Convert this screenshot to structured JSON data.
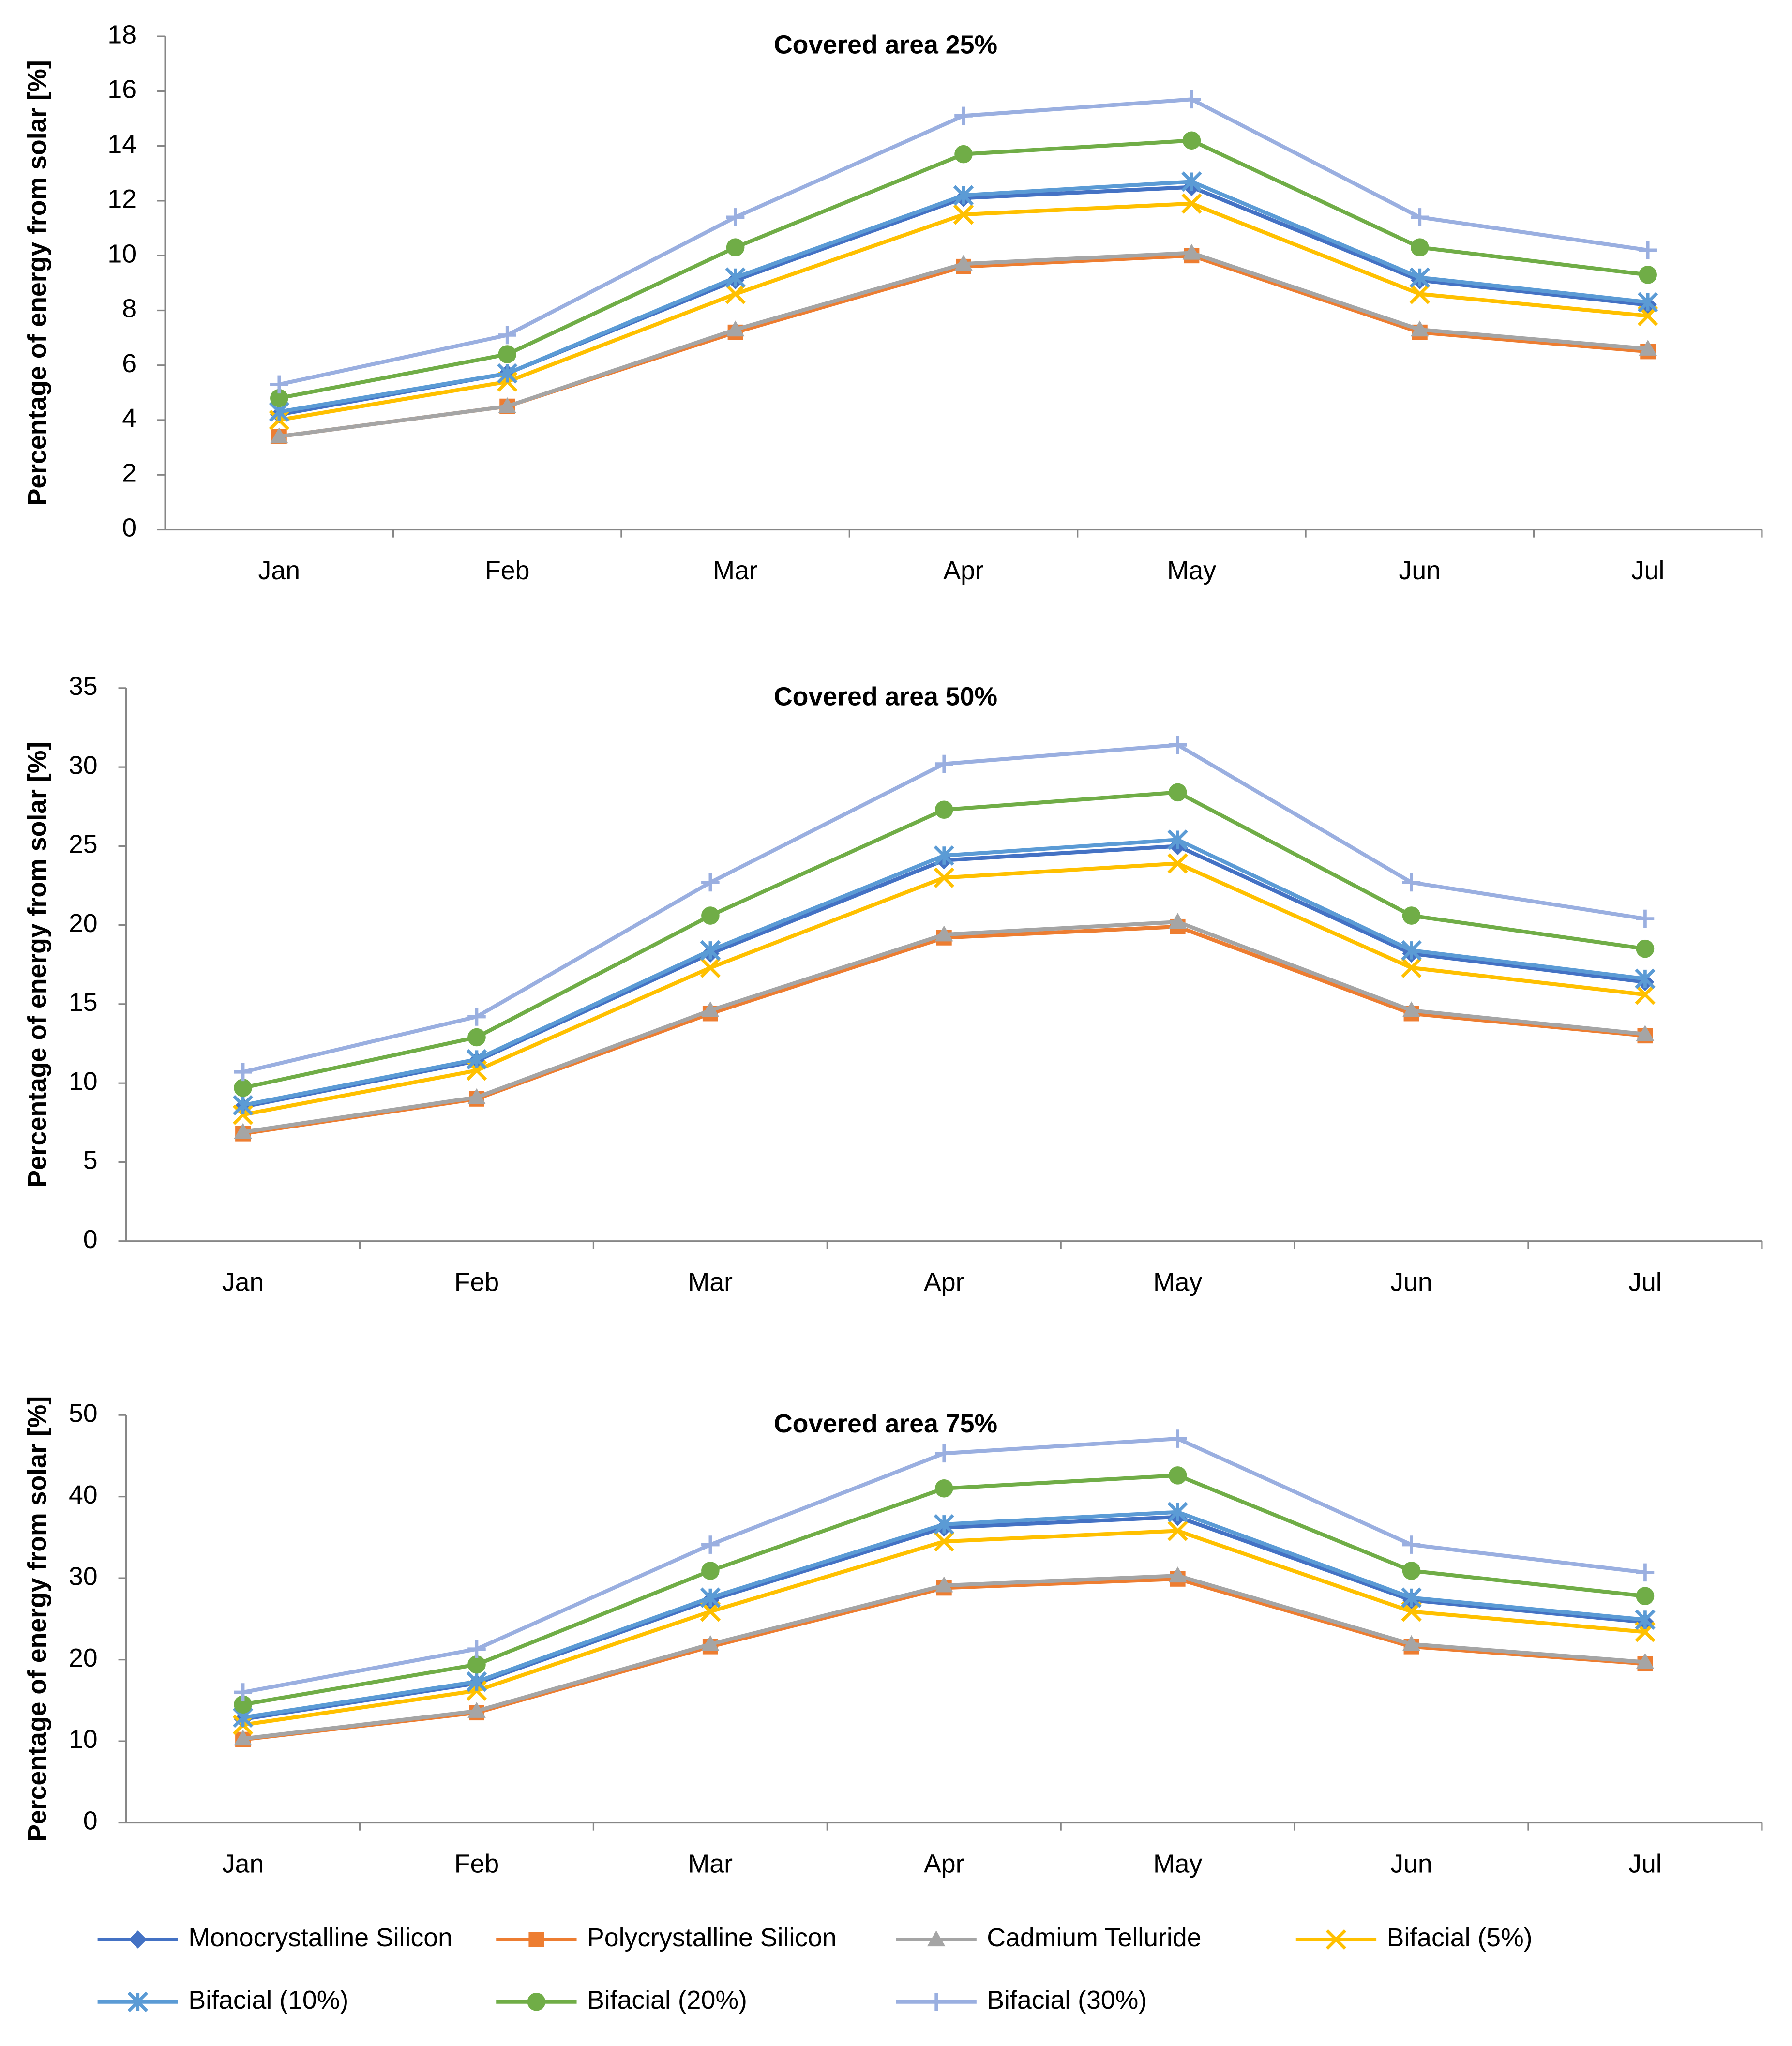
{
  "chart_data": [
    {
      "type": "line",
      "title": "Covered area 25%",
      "y_label": "Percentage of energy from solar [%]",
      "categories": [
        "Jan",
        "Feb",
        "Mar",
        "Apr",
        "May",
        "Jun",
        "Jul"
      ],
      "ylim": [
        0,
        18
      ],
      "yticks": [
        0,
        2,
        4,
        6,
        8,
        10,
        12,
        14,
        16,
        18
      ],
      "series": [
        {
          "values": [
            4.2,
            5.7,
            9.1,
            12.1,
            12.5,
            9.1,
            8.2
          ]
        },
        {
          "values": [
            3.4,
            4.5,
            7.2,
            9.6,
            10.0,
            7.2,
            6.5
          ]
        },
        {
          "values": [
            3.4,
            4.5,
            7.3,
            9.7,
            10.1,
            7.3,
            6.6
          ]
        },
        {
          "values": [
            4.0,
            5.4,
            8.6,
            11.5,
            11.9,
            8.6,
            7.8
          ]
        },
        {
          "values": [
            4.3,
            5.7,
            9.2,
            12.2,
            12.7,
            9.2,
            8.3
          ]
        },
        {
          "values": [
            4.8,
            6.4,
            10.3,
            13.7,
            14.2,
            10.3,
            9.3
          ]
        },
        {
          "values": [
            5.3,
            7.1,
            11.4,
            15.1,
            15.7,
            11.4,
            10.2
          ]
        }
      ]
    },
    {
      "type": "line",
      "title": "Covered area 50%",
      "y_label": "Percentage of energy from solar [%]",
      "categories": [
        "Jan",
        "Feb",
        "Mar",
        "Apr",
        "May",
        "Jun",
        "Jul"
      ],
      "ylim": [
        0,
        35
      ],
      "yticks": [
        0,
        5,
        10,
        15,
        20,
        25,
        30,
        35
      ],
      "series": [
        {
          "values": [
            8.5,
            11.4,
            18.2,
            24.1,
            25.0,
            18.2,
            16.4
          ]
        },
        {
          "values": [
            6.8,
            9.0,
            14.4,
            19.2,
            19.9,
            14.4,
            13.0
          ]
        },
        {
          "values": [
            6.9,
            9.1,
            14.6,
            19.4,
            20.2,
            14.6,
            13.1
          ]
        },
        {
          "values": [
            8.0,
            10.8,
            17.3,
            23.0,
            23.9,
            17.3,
            15.6
          ]
        },
        {
          "values": [
            8.6,
            11.5,
            18.4,
            24.4,
            25.4,
            18.4,
            16.6
          ]
        },
        {
          "values": [
            9.7,
            12.9,
            20.6,
            27.3,
            28.4,
            20.6,
            18.5
          ]
        },
        {
          "values": [
            10.7,
            14.2,
            22.7,
            30.2,
            31.4,
            22.7,
            20.4
          ]
        }
      ]
    },
    {
      "type": "line",
      "title": "Covered area 75%",
      "y_label": "Percentage of energy from solar [%]",
      "categories": [
        "Jan",
        "Feb",
        "Mar",
        "Apr",
        "May",
        "Jun",
        "Jul"
      ],
      "ylim": [
        0,
        50
      ],
      "yticks": [
        0,
        10,
        20,
        30,
        40,
        50
      ],
      "series": [
        {
          "values": [
            12.7,
            17.1,
            27.3,
            36.2,
            37.5,
            27.3,
            24.6
          ]
        },
        {
          "values": [
            10.2,
            13.5,
            21.6,
            28.8,
            29.9,
            21.6,
            19.5
          ]
        },
        {
          "values": [
            10.3,
            13.7,
            21.9,
            29.1,
            30.3,
            21.9,
            19.7
          ]
        },
        {
          "values": [
            12.0,
            16.2,
            25.9,
            34.5,
            35.8,
            25.9,
            23.4
          ]
        },
        {
          "values": [
            12.9,
            17.3,
            27.6,
            36.6,
            38.1,
            27.6,
            24.9
          ]
        },
        {
          "values": [
            14.5,
            19.4,
            30.9,
            41.0,
            42.6,
            30.9,
            27.8
          ]
        },
        {
          "values": [
            16.0,
            21.3,
            34.1,
            45.3,
            47.1,
            34.1,
            30.7
          ]
        }
      ]
    }
  ],
  "legend": {
    "position": "bottom",
    "entries": [
      {
        "name": "Monocrystalline Silicon",
        "color": "#4472c4",
        "marker": "diamond"
      },
      {
        "name": "Polycrystalline Silicon",
        "color": "#ed7d31",
        "marker": "square"
      },
      {
        "name": "Cadmium Telluride",
        "color": "#a5a5a5",
        "marker": "triangle"
      },
      {
        "name": "Bifacial (5%)",
        "color": "#ffc000",
        "marker": "x"
      },
      {
        "name": "Bifacial (10%)",
        "color": "#5b9bd5",
        "marker": "star"
      },
      {
        "name": "Bifacial (20%)",
        "color": "#70ad47",
        "marker": "circle"
      },
      {
        "name": "Bifacial (30%)",
        "color": "#9aafe0",
        "marker": "plus"
      }
    ]
  }
}
